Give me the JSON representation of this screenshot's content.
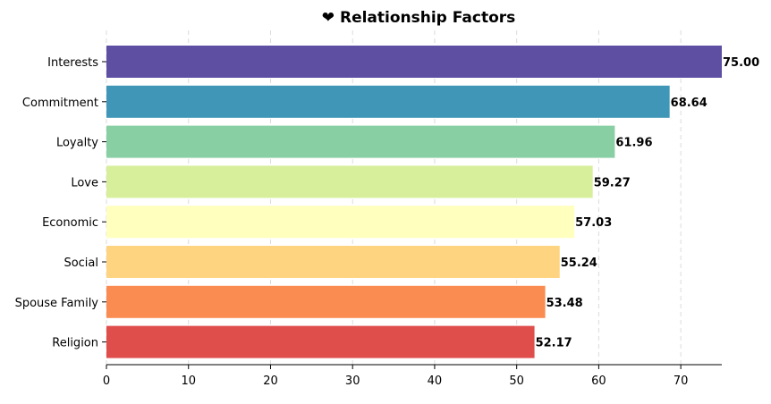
{
  "chart_data": {
    "type": "bar",
    "orientation": "horizontal",
    "title": "Relationship Factors",
    "title_icon": "❤",
    "xlabel": "",
    "ylabel": "",
    "xlim": [
      0,
      75
    ],
    "xticks": [
      0,
      10,
      20,
      30,
      40,
      50,
      60,
      70
    ],
    "grid": "x-dashed",
    "categories": [
      "Interests",
      "Commitment",
      "Loyalty",
      "Love",
      "Economic",
      "Social",
      "Spouse Family",
      "Religion"
    ],
    "values": [
      75.0,
      68.64,
      61.96,
      59.27,
      57.03,
      55.24,
      53.48,
      52.17
    ],
    "value_labels": [
      "75.00",
      "68.64",
      "61.96",
      "59.27",
      "57.03",
      "55.24",
      "53.48",
      "52.17"
    ],
    "colors": [
      "#5e4fa2",
      "#3f96b7",
      "#88cfa4",
      "#d7ef9b",
      "#ffffbe",
      "#fed481",
      "#fa8c52",
      "#df4e4b"
    ]
  }
}
